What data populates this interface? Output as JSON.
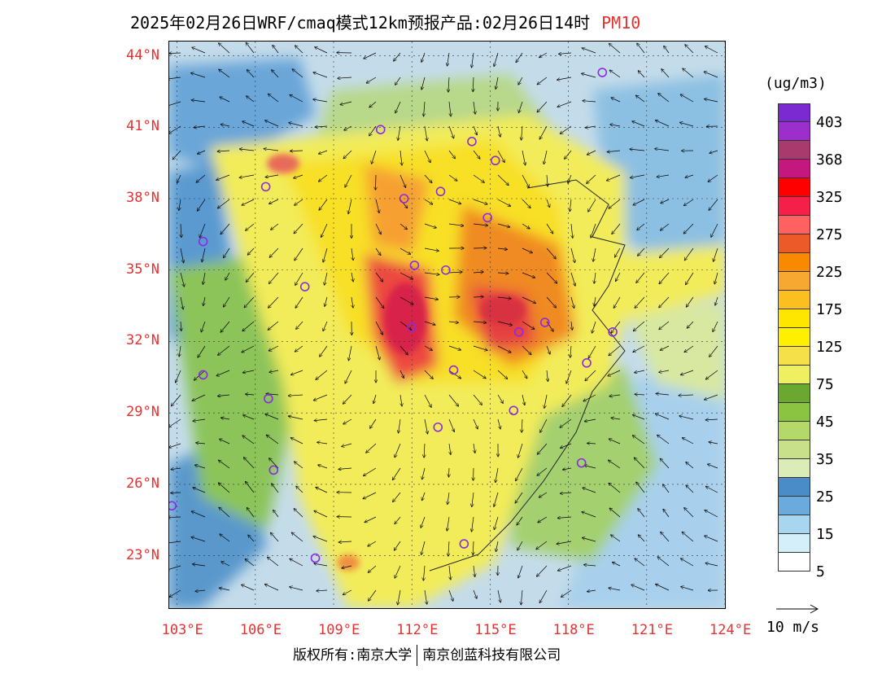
{
  "title": {
    "main": "2025年02月26日WRF/cmaq模式12km预报产品:02月26日14时",
    "pollutant": "PM10"
  },
  "lat_labels": [
    "44°N",
    "41°N",
    "38°N",
    "35°N",
    "32°N",
    "29°N",
    "26°N",
    "23°N"
  ],
  "lon_labels": [
    "103°E",
    "106°E",
    "109°E",
    "112°E",
    "115°E",
    "118°E",
    "121°E",
    "124°E"
  ],
  "colorbar": {
    "unit": "(ug/m3)",
    "labels": [
      "403",
      "368",
      "325",
      "275",
      "225",
      "175",
      "125",
      "75",
      "45",
      "35",
      "25",
      "15",
      "5"
    ],
    "colors": [
      "#7b2ad1",
      "#9c2fcc",
      "#a83a6e",
      "#c4187e",
      "#ff0000",
      "#f5204a",
      "#ff6060",
      "#ec5a2a",
      "#f98a00",
      "#f7a830",
      "#fbc020",
      "#ffe600",
      "#fff000",
      "#f5e04a",
      "#eef060",
      "#6aa832",
      "#8ac440",
      "#b4d86a",
      "#c8e08a",
      "#dcecb8",
      "#4a8cc8",
      "#6aaadc",
      "#a8d6f0",
      "#d4eefa",
      "#ffffff"
    ]
  },
  "wind_reference": {
    "label": "10 m/s"
  },
  "copyright": {
    "part1": "版权所有:南京大学",
    "part2": "南京创蓝科技有限公司"
  },
  "stations": [
    {
      "lon": 119.3,
      "lat": 43.3
    },
    {
      "lon": 110.8,
      "lat": 40.9
    },
    {
      "lon": 114.3,
      "lat": 40.4
    },
    {
      "lon": 115.2,
      "lat": 39.6
    },
    {
      "lon": 106.4,
      "lat": 38.5
    },
    {
      "lon": 111.7,
      "lat": 38.0
    },
    {
      "lon": 113.1,
      "lat": 38.3
    },
    {
      "lon": 114.9,
      "lat": 37.2
    },
    {
      "lon": 104.0,
      "lat": 36.2
    },
    {
      "lon": 112.1,
      "lat": 35.2
    },
    {
      "lon": 113.3,
      "lat": 35.0
    },
    {
      "lon": 107.9,
      "lat": 34.3
    },
    {
      "lon": 112.0,
      "lat": 32.6
    },
    {
      "lon": 116.1,
      "lat": 32.4
    },
    {
      "lon": 117.1,
      "lat": 32.8
    },
    {
      "lon": 119.7,
      "lat": 32.4
    },
    {
      "lon": 104.0,
      "lat": 30.6
    },
    {
      "lon": 113.6,
      "lat": 30.8
    },
    {
      "lon": 118.7,
      "lat": 31.1
    },
    {
      "lon": 106.5,
      "lat": 29.6
    },
    {
      "lon": 115.9,
      "lat": 29.1
    },
    {
      "lon": 113.0,
      "lat": 28.4
    },
    {
      "lon": 106.7,
      "lat": 26.6
    },
    {
      "lon": 118.5,
      "lat": 26.9
    },
    {
      "lon": 102.8,
      "lat": 25.1
    },
    {
      "lon": 114.0,
      "lat": 23.5
    },
    {
      "lon": 108.3,
      "lat": 22.9
    }
  ]
}
